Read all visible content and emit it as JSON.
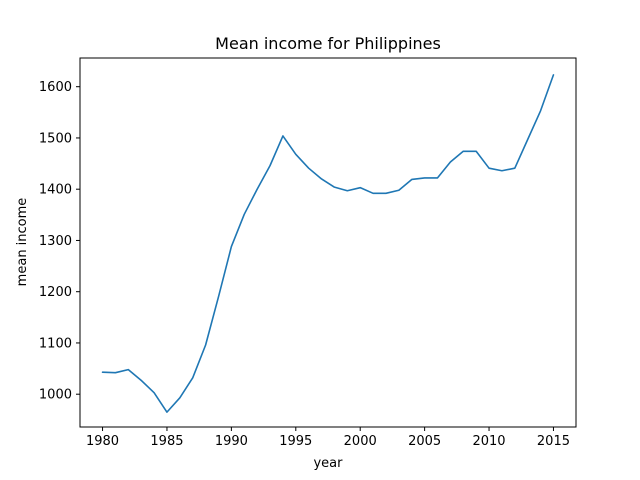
{
  "chart_data": {
    "type": "line",
    "title": "Mean income for Philippines",
    "xlabel": "year",
    "ylabel": "mean income",
    "xlim": [
      1978.25,
      2016.75
    ],
    "ylim": [
      936,
      1656
    ],
    "xticks": [
      1980,
      1985,
      1990,
      1995,
      2000,
      2005,
      2010,
      2015
    ],
    "yticks": [
      1000,
      1100,
      1200,
      1300,
      1400,
      1500,
      1600
    ],
    "grid": false,
    "series": [
      {
        "color": "#1f77b4",
        "x": [
          1980,
          1981,
          1982,
          1983,
          1984,
          1985,
          1986,
          1987,
          1988,
          1989,
          1990,
          1991,
          1992,
          1993,
          1994,
          1995,
          1996,
          1997,
          1998,
          1999,
          2000,
          2001,
          2002,
          2003,
          2004,
          2005,
          2006,
          2007,
          2008,
          2009,
          2010,
          2011,
          2012,
          2013,
          2014,
          2015
        ],
        "values": [
          1043,
          1042,
          1048,
          1027,
          1003,
          965,
          993,
          1032,
          1096,
          1190,
          1288,
          1351,
          1400,
          1446,
          1504,
          1468,
          1441,
          1420,
          1404,
          1397,
          1403,
          1392,
          1392,
          1398,
          1419,
          1422,
          1422,
          1453,
          1474,
          1474,
          1441,
          1436,
          1441,
          1497,
          1553,
          1623
        ]
      }
    ]
  }
}
